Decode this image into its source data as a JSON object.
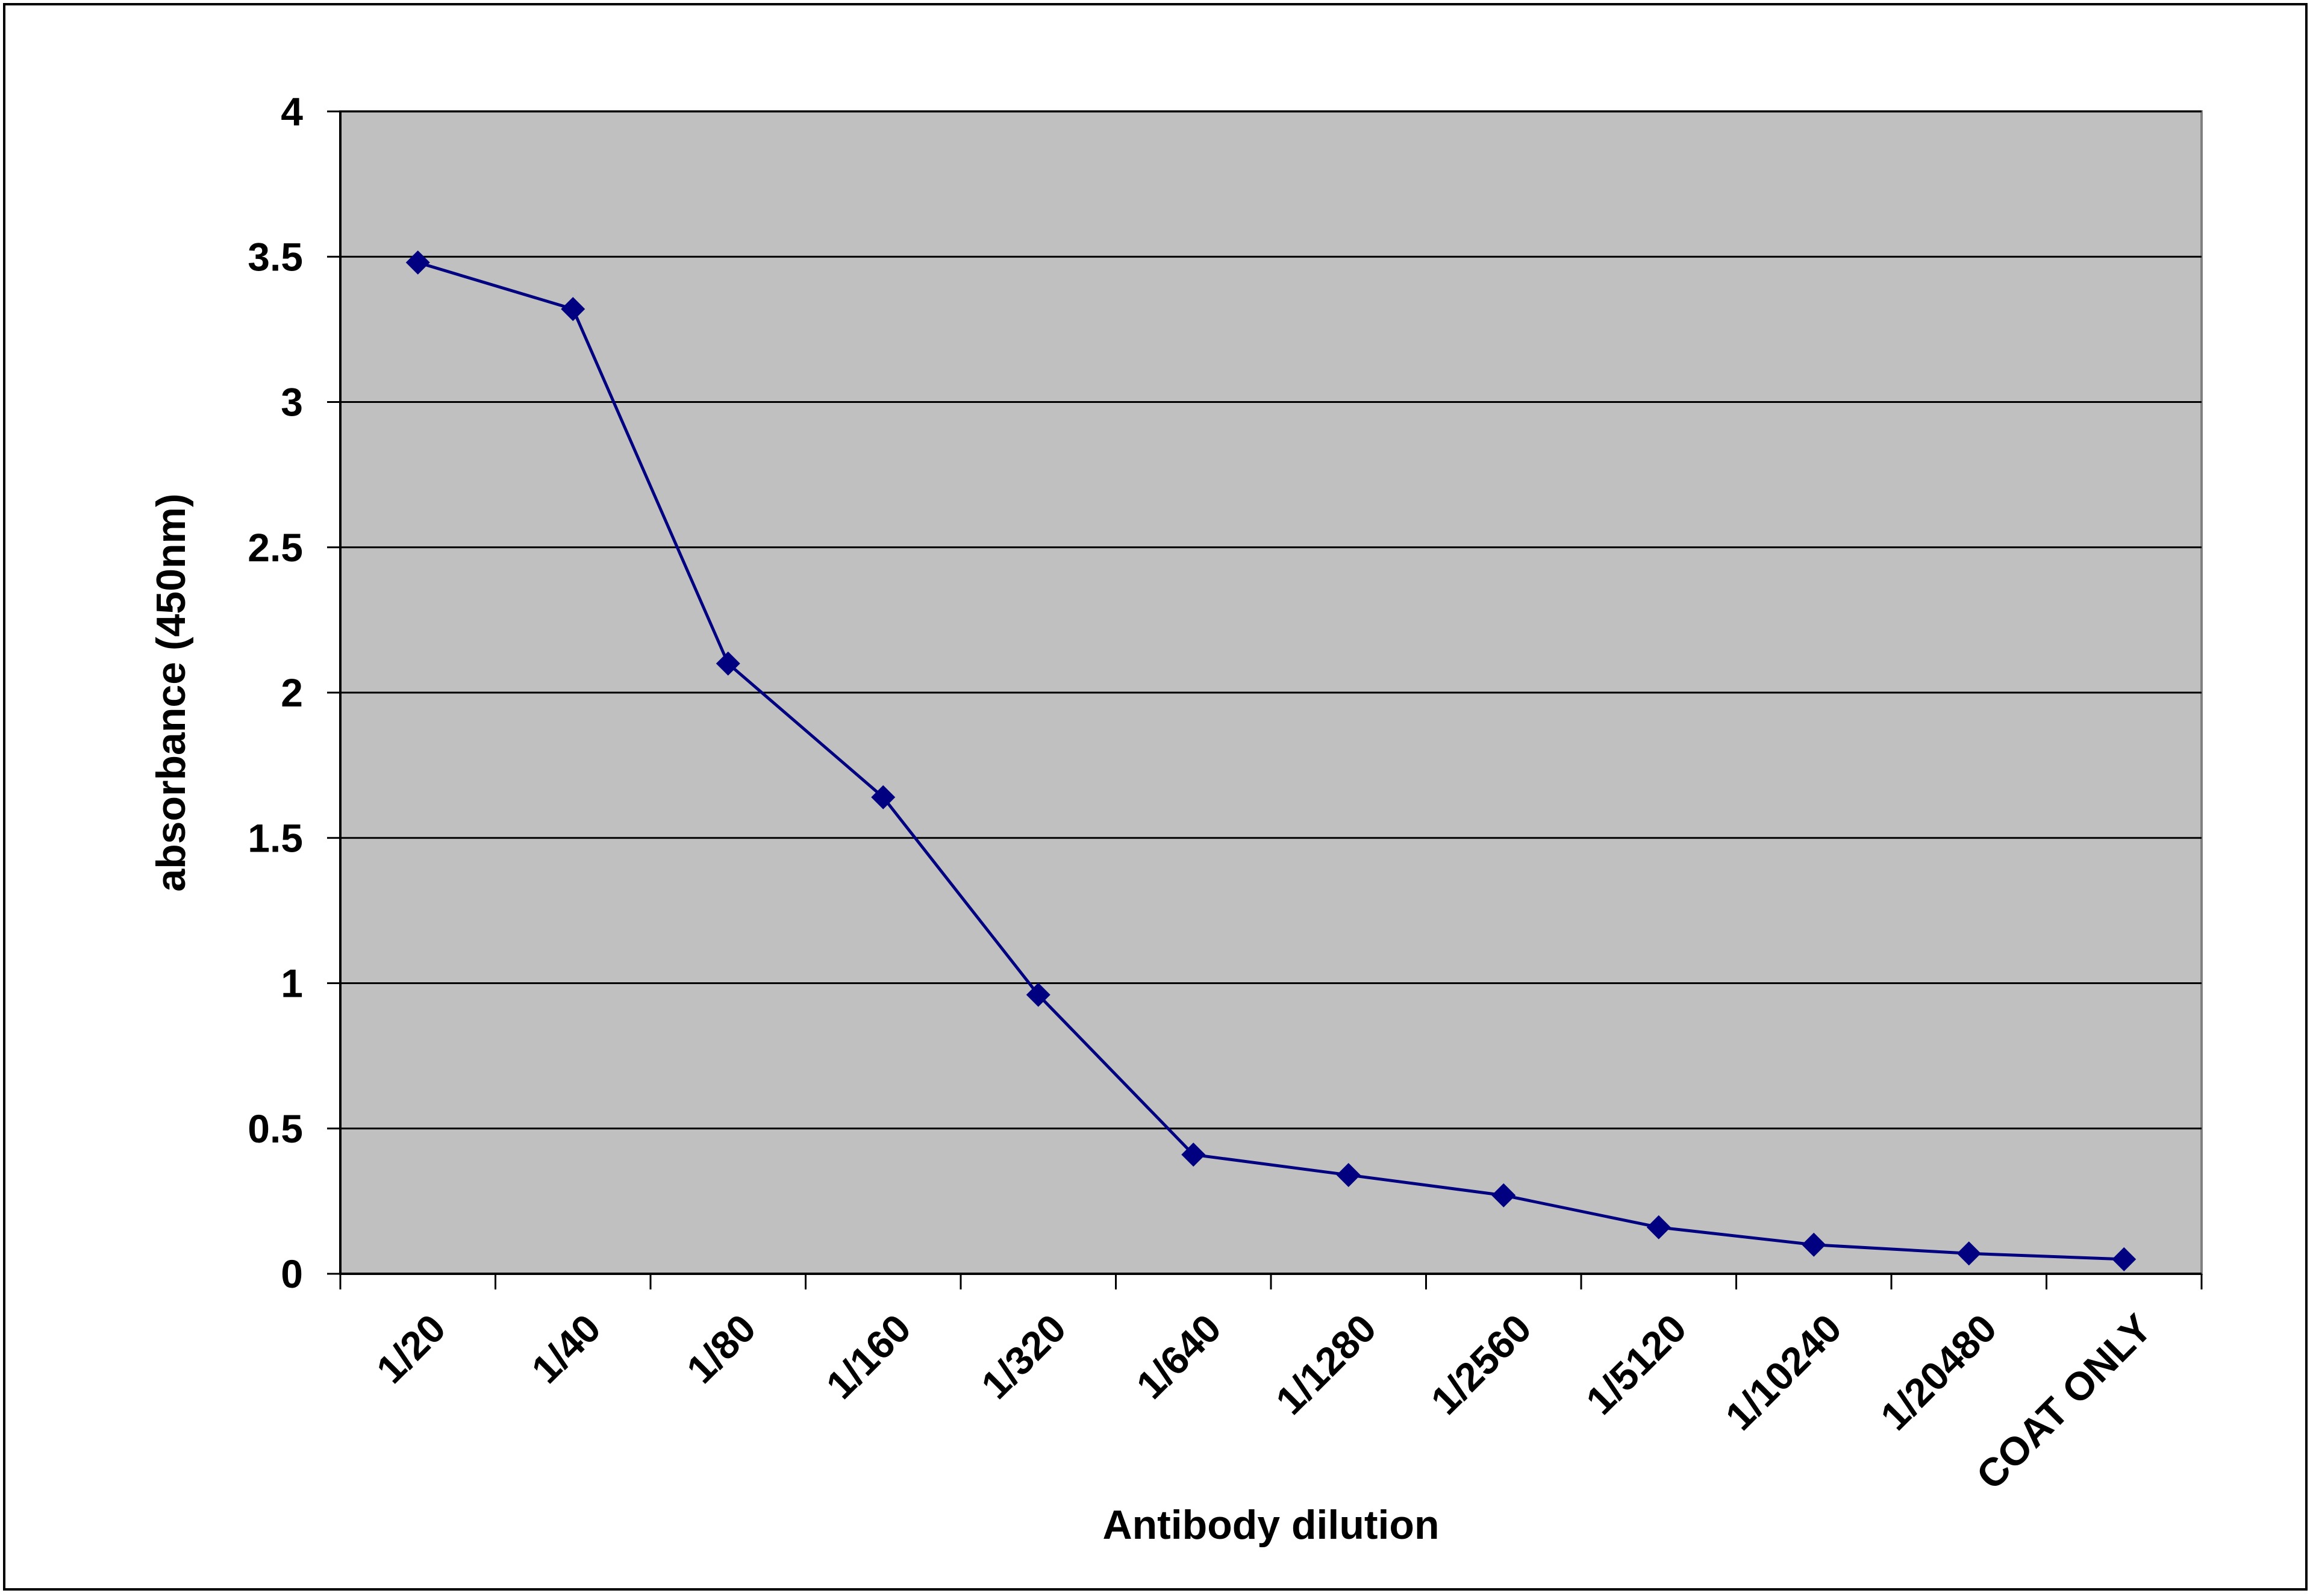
{
  "chart_data": {
    "type": "line",
    "title": "",
    "xlabel": "Antibody dilution",
    "ylabel": "absorbance (450nm)",
    "categories": [
      "1/20",
      "1/40",
      "1/80",
      "1/160",
      "1/320",
      "1/640",
      "1/1280",
      "1/2560",
      "1/5120",
      "1/10240",
      "1/20480",
      "COAT ONLY"
    ],
    "series": [
      {
        "values": [
          3.48,
          3.32,
          2.1,
          1.64,
          0.96,
          0.41,
          0.34,
          0.27,
          0.16,
          0.1,
          0.07,
          0.05
        ]
      }
    ],
    "ylim": [
      0,
      4
    ],
    "yticks": [
      "0",
      "0.5",
      "1",
      "1.5",
      "2",
      "2.5",
      "3",
      "3.5",
      "4"
    ],
    "grid": "horizontal",
    "legend": "none",
    "colors": {
      "plot_background": "#c0c0c0",
      "series": "#000080",
      "gridline": "#000000"
    }
  }
}
